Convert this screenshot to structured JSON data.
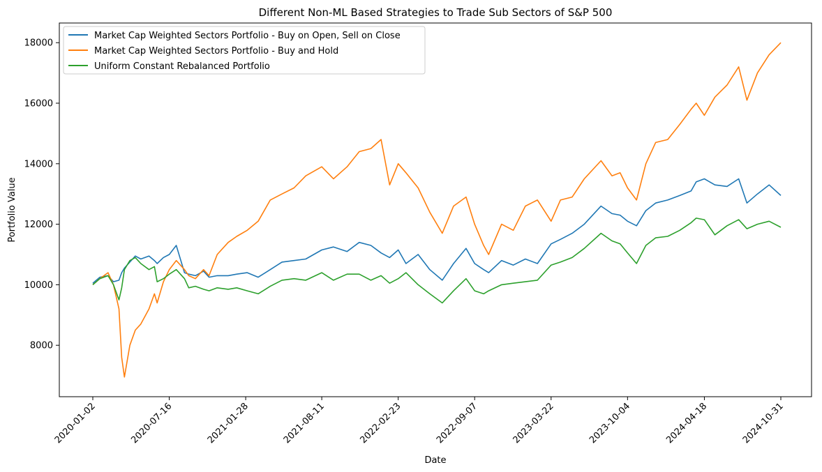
{
  "chart_data": {
    "type": "line",
    "title": "Different Non-ML Based Strategies to Trade Sub Sectors of S&P 500",
    "xlabel": "Date",
    "ylabel": "Portfolio Value",
    "x_ticks": [
      "2020-01-02",
      "2020-07-16",
      "2021-01-28",
      "2021-08-11",
      "2022-02-23",
      "2022-09-07",
      "2023-03-22",
      "2023-10-04",
      "2024-04-18",
      "2024-10-31"
    ],
    "y_ticks": [
      8000,
      10000,
      12000,
      14000,
      16000,
      18000
    ],
    "ylim": [
      6300,
      18650
    ],
    "grid": false,
    "legend_position": "top-left",
    "series": [
      {
        "name": "Market Cap Weighted Sectors Portfolio - Buy on Open, Sell on Close",
        "color": "#1f77b4",
        "x": [
          "2020-01-02",
          "2020-01-20",
          "2020-02-10",
          "2020-02-24",
          "2020-03-09",
          "2020-03-16",
          "2020-03-23",
          "2020-04-06",
          "2020-04-20",
          "2020-05-04",
          "2020-05-25",
          "2020-06-08",
          "2020-06-15",
          "2020-07-01",
          "2020-07-16",
          "2020-08-03",
          "2020-08-24",
          "2020-09-04",
          "2020-09-21",
          "2020-10-12",
          "2020-10-26",
          "2020-11-16",
          "2020-12-14",
          "2021-01-05",
          "2021-02-01",
          "2021-03-01",
          "2021-04-01",
          "2021-05-01",
          "2021-06-01",
          "2021-07-01",
          "2021-08-11",
          "2021-09-10",
          "2021-10-15",
          "2021-11-15",
          "2021-12-15",
          "2022-01-10",
          "2022-02-01",
          "2022-02-23",
          "2022-03-15",
          "2022-04-15",
          "2022-05-15",
          "2022-06-16",
          "2022-07-15",
          "2022-08-16",
          "2022-09-07",
          "2022-09-30",
          "2022-10-13",
          "2022-11-15",
          "2022-12-15",
          "2023-01-15",
          "2023-02-15",
          "2023-03-22",
          "2023-04-15",
          "2023-05-15",
          "2023-06-15",
          "2023-07-28",
          "2023-08-25",
          "2023-09-15",
          "2023-10-04",
          "2023-10-27",
          "2023-11-20",
          "2023-12-15",
          "2024-01-15",
          "2024-02-15",
          "2024-03-15",
          "2024-03-28",
          "2024-04-18",
          "2024-05-15",
          "2024-06-15",
          "2024-07-15",
          "2024-08-05",
          "2024-09-01",
          "2024-10-01",
          "2024-10-31"
        ],
        "values": [
          10050,
          10250,
          10300,
          10100,
          10150,
          10400,
          10550,
          10750,
          10950,
          10850,
          10950,
          10800,
          10700,
          10900,
          11000,
          11300,
          10400,
          10350,
          10300,
          10450,
          10250,
          10300,
          10300,
          10350,
          10400,
          10250,
          10500,
          10750,
          10800,
          10850,
          11150,
          11250,
          11100,
          11400,
          11300,
          11050,
          10900,
          11150,
          10700,
          11000,
          10500,
          10150,
          10700,
          11200,
          10700,
          10500,
          10400,
          10800,
          10650,
          10850,
          10700,
          11350,
          11500,
          11700,
          12000,
          12600,
          12350,
          12300,
          12100,
          11950,
          12450,
          12700,
          12800,
          12950,
          13100,
          13400,
          13500,
          13300,
          13250,
          13500,
          12700,
          13000,
          13300,
          12950
        ]
      },
      {
        "name": "Market Cap Weighted Sectors Portfolio - Buy and Hold",
        "color": "#ff7f0e",
        "x": [
          "2020-01-02",
          "2020-01-20",
          "2020-02-10",
          "2020-02-24",
          "2020-03-09",
          "2020-03-16",
          "2020-03-23",
          "2020-04-06",
          "2020-04-20",
          "2020-05-04",
          "2020-05-25",
          "2020-06-08",
          "2020-06-15",
          "2020-07-01",
          "2020-07-16",
          "2020-08-03",
          "2020-08-24",
          "2020-09-04",
          "2020-09-21",
          "2020-10-12",
          "2020-10-26",
          "2020-11-16",
          "2020-12-14",
          "2021-01-05",
          "2021-02-01",
          "2021-03-01",
          "2021-04-01",
          "2021-05-01",
          "2021-06-01",
          "2021-07-01",
          "2021-08-11",
          "2021-09-10",
          "2021-10-15",
          "2021-11-15",
          "2021-12-15",
          "2022-01-10",
          "2022-02-01",
          "2022-02-23",
          "2022-03-15",
          "2022-04-15",
          "2022-05-15",
          "2022-06-16",
          "2022-07-15",
          "2022-08-16",
          "2022-09-07",
          "2022-09-30",
          "2022-10-13",
          "2022-11-15",
          "2022-12-15",
          "2023-01-15",
          "2023-02-15",
          "2023-03-22",
          "2023-04-15",
          "2023-05-15",
          "2023-06-15",
          "2023-07-28",
          "2023-08-25",
          "2023-09-15",
          "2023-10-04",
          "2023-10-27",
          "2023-11-20",
          "2023-12-15",
          "2024-01-15",
          "2024-02-15",
          "2024-03-15",
          "2024-03-28",
          "2024-04-18",
          "2024-05-15",
          "2024-06-15",
          "2024-07-15",
          "2024-08-05",
          "2024-09-01",
          "2024-10-01",
          "2024-10-31"
        ],
        "values": [
          10000,
          10200,
          10400,
          10000,
          9200,
          7600,
          6950,
          8000,
          8500,
          8700,
          9200,
          9700,
          9400,
          10100,
          10500,
          10800,
          10500,
          10300,
          10200,
          10500,
          10300,
          11000,
          11400,
          11600,
          11800,
          12100,
          12800,
          13000,
          13200,
          13600,
          13900,
          13500,
          13900,
          14400,
          14500,
          14800,
          13300,
          14000,
          13700,
          13200,
          12400,
          11700,
          12600,
          12900,
          12000,
          11300,
          11000,
          12000,
          11800,
          12600,
          12800,
          12100,
          12800,
          12900,
          13500,
          14100,
          13600,
          13700,
          13200,
          12800,
          14000,
          14700,
          14800,
          15300,
          15800,
          16000,
          15600,
          16200,
          16600,
          17200,
          16100,
          17000,
          17600,
          18000
        ]
      },
      {
        "name": "Uniform Constant Rebalanced Portfolio",
        "color": "#2ca02c",
        "x": [
          "2020-01-02",
          "2020-01-20",
          "2020-02-10",
          "2020-02-24",
          "2020-03-09",
          "2020-03-16",
          "2020-03-23",
          "2020-04-06",
          "2020-04-20",
          "2020-05-04",
          "2020-05-25",
          "2020-06-08",
          "2020-06-15",
          "2020-07-01",
          "2020-07-16",
          "2020-08-03",
          "2020-08-24",
          "2020-09-04",
          "2020-09-21",
          "2020-10-12",
          "2020-10-26",
          "2020-11-16",
          "2020-12-14",
          "2021-01-05",
          "2021-02-01",
          "2021-03-01",
          "2021-04-01",
          "2021-05-01",
          "2021-06-01",
          "2021-07-01",
          "2021-08-11",
          "2021-09-10",
          "2021-10-15",
          "2021-11-15",
          "2021-12-15",
          "2022-01-10",
          "2022-02-01",
          "2022-02-23",
          "2022-03-15",
          "2022-04-15",
          "2022-05-15",
          "2022-06-16",
          "2022-07-15",
          "2022-08-16",
          "2022-09-07",
          "2022-09-30",
          "2022-10-13",
          "2022-11-15",
          "2022-12-15",
          "2023-01-15",
          "2023-02-15",
          "2023-03-22",
          "2023-04-15",
          "2023-05-15",
          "2023-06-15",
          "2023-07-28",
          "2023-08-25",
          "2023-09-15",
          "2023-10-04",
          "2023-10-27",
          "2023-11-20",
          "2023-12-15",
          "2024-01-15",
          "2024-02-15",
          "2024-03-15",
          "2024-03-28",
          "2024-04-18",
          "2024-05-15",
          "2024-06-15",
          "2024-07-15",
          "2024-08-05",
          "2024-09-01",
          "2024-10-01",
          "2024-10-31"
        ],
        "values": [
          10000,
          10200,
          10300,
          10000,
          9500,
          9900,
          10500,
          10800,
          10900,
          10700,
          10500,
          10600,
          10100,
          10200,
          10350,
          10500,
          10200,
          9900,
          9950,
          9850,
          9800,
          9900,
          9850,
          9900,
          9800,
          9700,
          9950,
          10150,
          10200,
          10150,
          10400,
          10150,
          10350,
          10350,
          10150,
          10300,
          10050,
          10200,
          10400,
          10000,
          9700,
          9400,
          9800,
          10200,
          9800,
          9700,
          9800,
          10000,
          10050,
          10100,
          10150,
          10650,
          10750,
          10900,
          11200,
          11700,
          11450,
          11350,
          11050,
          10700,
          11300,
          11550,
          11600,
          11800,
          12050,
          12200,
          12150,
          11650,
          11950,
          12150,
          11850,
          12000,
          12100,
          11900
        ]
      }
    ]
  }
}
